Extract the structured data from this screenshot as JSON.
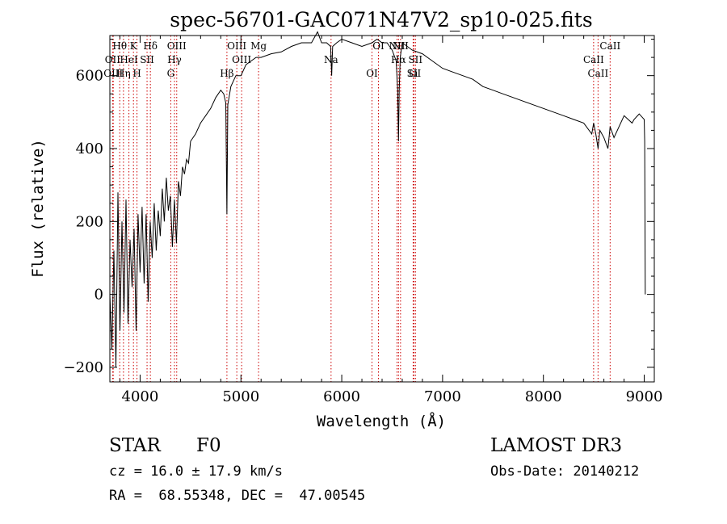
{
  "chart_data": {
    "type": "line",
    "title": "spec-56701-GAC071N47V2_sp10-025.fits",
    "xlabel": "Wavelength (Å)",
    "ylabel": "Flux (relative)",
    "xlim": [
      3700,
      9100
    ],
    "ylim": [
      -240,
      710
    ],
    "xticks": [
      4000,
      5000,
      6000,
      7000,
      8000,
      9000
    ],
    "xtick_labels": [
      "4000",
      "5000",
      "6000",
      "7000",
      "8000",
      "9000"
    ],
    "yticks": [
      -200,
      0,
      200,
      400,
      600
    ],
    "ytick_labels": [
      "−200",
      "0",
      "200",
      "400",
      "600"
    ],
    "grid": false,
    "series": [
      {
        "name": "spectrum",
        "x": [
          3700,
          3720,
          3740,
          3760,
          3780,
          3800,
          3820,
          3840,
          3860,
          3880,
          3900,
          3920,
          3940,
          3960,
          3980,
          4000,
          4020,
          4040,
          4060,
          4080,
          4100,
          4120,
          4140,
          4160,
          4180,
          4200,
          4220,
          4240,
          4260,
          4280,
          4300,
          4320,
          4340,
          4360,
          4380,
          4400,
          4420,
          4440,
          4460,
          4480,
          4500,
          4550,
          4600,
          4650,
          4700,
          4750,
          4800,
          4830,
          4850,
          4861,
          4870,
          4900,
          4950,
          5000,
          5050,
          5100,
          5150,
          5200,
          5300,
          5400,
          5500,
          5600,
          5700,
          5760,
          5800,
          5850,
          5890,
          5900,
          5910,
          5950,
          6000,
          6100,
          6200,
          6300,
          6350,
          6400,
          6450,
          6500,
          6540,
          6555,
          6563,
          6570,
          6580,
          6600,
          6650,
          6700,
          6800,
          6900,
          7000,
          7100,
          7200,
          7300,
          7400,
          7500,
          7600,
          7700,
          7800,
          7900,
          8000,
          8100,
          8200,
          8300,
          8400,
          8480,
          8498,
          8520,
          8542,
          8560,
          8600,
          8640,
          8662,
          8700,
          8800,
          8880,
          8900,
          8950,
          9000,
          9005,
          9010
        ],
        "y": [
          0,
          -150,
          120,
          -200,
          280,
          -100,
          200,
          -50,
          260,
          -80,
          150,
          20,
          180,
          -100,
          220,
          60,
          240,
          30,
          220,
          -20,
          200,
          100,
          250,
          120,
          230,
          160,
          290,
          200,
          320,
          230,
          270,
          130,
          260,
          140,
          310,
          270,
          350,
          330,
          370,
          360,
          420,
          440,
          470,
          490,
          510,
          540,
          560,
          550,
          525,
          220,
          520,
          570,
          600,
          600,
          630,
          640,
          650,
          650,
          660,
          665,
          680,
          690,
          690,
          720,
          690,
          690,
          680,
          600,
          680,
          690,
          700,
          690,
          680,
          690,
          700,
          690,
          690,
          670,
          640,
          560,
          420,
          560,
          650,
          690,
          680,
          670,
          660,
          640,
          620,
          610,
          600,
          590,
          570,
          560,
          550,
          540,
          530,
          520,
          510,
          500,
          490,
          480,
          470,
          440,
          470,
          440,
          400,
          450,
          430,
          400,
          460,
          430,
          490,
          470,
          480,
          495,
          480,
          420,
          0
        ]
      }
    ],
    "lines_top": [
      {
        "label": "Hθ",
        "x": 3798
      },
      {
        "label": "OII",
        "x": 3727
      },
      {
        "label": "OIII",
        "x": 3734
      },
      {
        "label": "K",
        "x": 3934
      },
      {
        "label": "HeI",
        "x": 3889
      },
      {
        "label": "Hη",
        "x": 3835
      },
      {
        "label": "Hδ",
        "x": 4102
      },
      {
        "label": "SII",
        "x": 4069
      },
      {
        "label": "H",
        "x": 3969
      },
      {
        "label": "OIII",
        "x": 4363
      },
      {
        "label": "Hγ",
        "x": 4341
      },
      {
        "label": "G",
        "x": 4304
      },
      {
        "label": "OIII",
        "x": 4959
      },
      {
        "label": "OIII",
        "x": 5007
      },
      {
        "label": "Hβ",
        "x": 4861
      },
      {
        "label": "Mg",
        "x": 5175
      },
      {
        "label": "Na",
        "x": 5894
      },
      {
        "label": "OI",
        "x": 6300
      },
      {
        "label": "OI",
        "x": 6364
      },
      {
        "label": "Hα",
        "x": 6563
      },
      {
        "label": "SII",
        "x": 6716
      },
      {
        "label": "NII",
        "x": 6583
      },
      {
        "label": "SII",
        "x": 6731
      },
      {
        "label": "Li",
        "x": 6708
      },
      {
        "label": "NII",
        "x": 6548
      },
      {
        "label": "CaII",
        "x": 8498
      },
      {
        "label": "CaII",
        "x": 8542
      },
      {
        "label": "CaII",
        "x": 8662
      }
    ]
  },
  "info": {
    "class_label": "STAR",
    "subclass": "F0",
    "survey": "LAMOST DR3",
    "cz": "cz = 16.0 ± 17.9 km/s",
    "obs_date": "Obs-Date: 20140212",
    "coords": "RA =  68.55348, DEC =  47.00545"
  },
  "colors": {
    "line_marker": "#cc0000",
    "spectrum": "#000000",
    "axes": "#000000"
  }
}
